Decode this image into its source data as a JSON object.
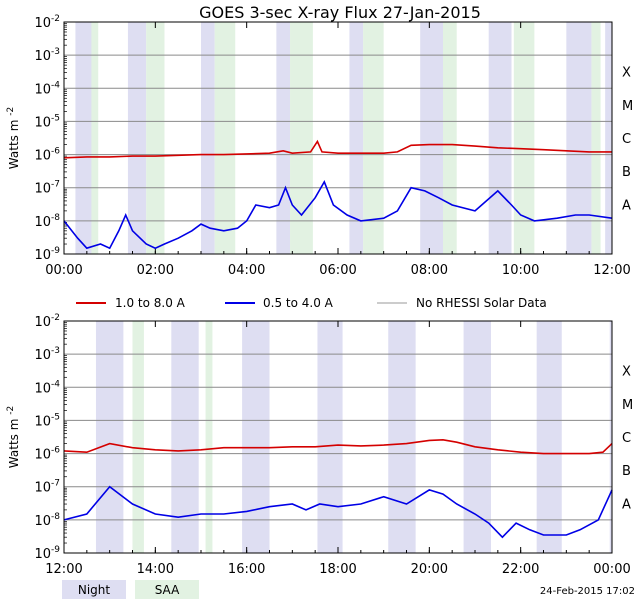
{
  "title": "GOES 3-sec X-ray Flux   27-Jan-2015",
  "timestamp": "24-Feb-2015 17:02",
  "colors": {
    "long_channel": "#d40000",
    "short_channel": "#0000e6",
    "no_rhessi": "#999999",
    "night": "#dedef2",
    "saa": "#e2f2e2",
    "grid": "#8a8a8a"
  },
  "legend": {
    "long": "1.0 to 8.0 A",
    "short": "0.5 to 4.0 A",
    "no_rhessi": "No RHESSI Solar Data"
  },
  "bottom_legend": {
    "night": "Night",
    "saa": "SAA"
  },
  "chart_data": [
    {
      "type": "line",
      "ylabel": "Watts m",
      "ylabel_sup": "-2",
      "yscale": "log",
      "ylim": [
        1e-09,
        0.01
      ],
      "ytick_exponents": [
        -9,
        -8,
        -7,
        -6,
        -5,
        -4,
        -3,
        -2
      ],
      "flare_classes": [
        "A",
        "B",
        "C",
        "M",
        "X"
      ],
      "x_ticks": [
        "00:00",
        "02:00",
        "04:00",
        "06:00",
        "08:00",
        "10:00",
        "12:00"
      ],
      "xlim_hours": [
        0,
        12
      ],
      "night_periods_hours": [
        [
          0.25,
          0.65
        ],
        [
          1.4,
          1.8
        ],
        [
          3.0,
          3.3
        ],
        [
          4.65,
          4.95
        ],
        [
          6.25,
          6.55
        ],
        [
          7.8,
          8.3
        ],
        [
          9.3,
          9.8
        ],
        [
          11.0,
          11.55
        ],
        [
          11.85,
          12.0
        ]
      ],
      "saa_periods_hours": [
        [
          0.6,
          0.75
        ],
        [
          1.8,
          2.2
        ],
        [
          3.3,
          3.75
        ],
        [
          4.95,
          5.45
        ],
        [
          6.55,
          7.0
        ],
        [
          8.3,
          8.6
        ],
        [
          9.85,
          10.3
        ],
        [
          11.55,
          11.75
        ]
      ],
      "series": [
        {
          "name": "1.0 to 8.0 A",
          "channel": "long",
          "points": [
            [
              0,
              8e-07
            ],
            [
              0.5,
              8.5e-07
            ],
            [
              1.0,
              8.5e-07
            ],
            [
              1.5,
              9e-07
            ],
            [
              2.0,
              9e-07
            ],
            [
              2.5,
              9.5e-07
            ],
            [
              3.0,
              1e-06
            ],
            [
              3.5,
              1e-06
            ],
            [
              4.0,
              1.05e-06
            ],
            [
              4.5,
              1.1e-06
            ],
            [
              4.8,
              1.3e-06
            ],
            [
              5.0,
              1.1e-06
            ],
            [
              5.4,
              1.2e-06
            ],
            [
              5.55,
              2.5e-06
            ],
            [
              5.65,
              1.2e-06
            ],
            [
              6.0,
              1.1e-06
            ],
            [
              6.5,
              1.1e-06
            ],
            [
              7.0,
              1.1e-06
            ],
            [
              7.3,
              1.2e-06
            ],
            [
              7.6,
              1.9e-06
            ],
            [
              8.0,
              2e-06
            ],
            [
              8.5,
              2e-06
            ],
            [
              9.0,
              1.8e-06
            ],
            [
              9.5,
              1.6e-06
            ],
            [
              10.0,
              1.5e-06
            ],
            [
              10.5,
              1.4e-06
            ],
            [
              11.0,
              1.3e-06
            ],
            [
              11.5,
              1.2e-06
            ],
            [
              12.0,
              1.2e-06
            ]
          ]
        },
        {
          "name": "0.5 to 4.0 A",
          "channel": "short",
          "points": [
            [
              0,
              1e-08
            ],
            [
              0.3,
              3e-09
            ],
            [
              0.5,
              1.5e-09
            ],
            [
              0.8,
              2e-09
            ],
            [
              1.0,
              1.5e-09
            ],
            [
              1.2,
              5e-09
            ],
            [
              1.35,
              1.5e-08
            ],
            [
              1.5,
              5e-09
            ],
            [
              1.8,
              2e-09
            ],
            [
              2.0,
              1.5e-09
            ],
            [
              2.2,
              2e-09
            ],
            [
              2.5,
              3e-09
            ],
            [
              2.8,
              5e-09
            ],
            [
              3.0,
              8e-09
            ],
            [
              3.2,
              6e-09
            ],
            [
              3.5,
              5e-09
            ],
            [
              3.8,
              6e-09
            ],
            [
              4.0,
              1e-08
            ],
            [
              4.2,
              3e-08
            ],
            [
              4.5,
              2.5e-08
            ],
            [
              4.7,
              3e-08
            ],
            [
              4.85,
              1e-07
            ],
            [
              5.0,
              3e-08
            ],
            [
              5.2,
              1.5e-08
            ],
            [
              5.5,
              5e-08
            ],
            [
              5.7,
              1.5e-07
            ],
            [
              5.9,
              3e-08
            ],
            [
              6.2,
              1.5e-08
            ],
            [
              6.5,
              1e-08
            ],
            [
              7.0,
              1.2e-08
            ],
            [
              7.3,
              2e-08
            ],
            [
              7.6,
              1e-07
            ],
            [
              7.9,
              8e-08
            ],
            [
              8.2,
              5e-08
            ],
            [
              8.5,
              3e-08
            ],
            [
              9.0,
              2e-08
            ],
            [
              9.5,
              8e-08
            ],
            [
              9.8,
              3e-08
            ],
            [
              10.0,
              1.5e-08
            ],
            [
              10.3,
              1e-08
            ],
            [
              10.8,
              1.2e-08
            ],
            [
              11.2,
              1.5e-08
            ],
            [
              11.5,
              1.5e-08
            ],
            [
              12.0,
              1.2e-08
            ]
          ]
        }
      ]
    },
    {
      "type": "line",
      "ylabel": "Watts m",
      "ylabel_sup": "-2",
      "yscale": "log",
      "ylim": [
        1e-09,
        0.01
      ],
      "ytick_exponents": [
        -9,
        -8,
        -7,
        -6,
        -5,
        -4,
        -3,
        -2
      ],
      "flare_classes": [
        "A",
        "B",
        "C",
        "M",
        "X"
      ],
      "x_ticks": [
        "12:00",
        "14:00",
        "16:00",
        "18:00",
        "20:00",
        "22:00",
        "00:00"
      ],
      "xlim_hours": [
        12,
        24
      ],
      "night_periods_hours": [
        [
          12.7,
          13.3
        ],
        [
          14.35,
          14.95
        ],
        [
          15.9,
          16.5
        ],
        [
          17.55,
          18.1
        ],
        [
          19.1,
          19.7
        ],
        [
          20.75,
          21.35
        ],
        [
          22.35,
          22.9
        ],
        [
          23.95,
          24.0
        ]
      ],
      "saa_periods_hours": [
        [
          13.5,
          13.75
        ],
        [
          15.1,
          15.25
        ]
      ],
      "series": [
        {
          "name": "1.0 to 8.0 A",
          "channel": "long",
          "points": [
            [
              12.0,
              1.2e-06
            ],
            [
              12.5,
              1.1e-06
            ],
            [
              13.0,
              2e-06
            ],
            [
              13.5,
              1.5e-06
            ],
            [
              14.0,
              1.3e-06
            ],
            [
              14.5,
              1.2e-06
            ],
            [
              15.0,
              1.3e-06
            ],
            [
              15.5,
              1.5e-06
            ],
            [
              16.0,
              1.5e-06
            ],
            [
              16.5,
              1.5e-06
            ],
            [
              17.0,
              1.6e-06
            ],
            [
              17.5,
              1.6e-06
            ],
            [
              18.0,
              1.8e-06
            ],
            [
              18.5,
              1.7e-06
            ],
            [
              19.0,
              1.8e-06
            ],
            [
              19.5,
              2e-06
            ],
            [
              20.0,
              2.5e-06
            ],
            [
              20.3,
              2.6e-06
            ],
            [
              20.6,
              2.2e-06
            ],
            [
              21.0,
              1.6e-06
            ],
            [
              21.5,
              1.3e-06
            ],
            [
              22.0,
              1.1e-06
            ],
            [
              22.5,
              1e-06
            ],
            [
              23.0,
              1e-06
            ],
            [
              23.5,
              1e-06
            ],
            [
              23.8,
              1.1e-06
            ],
            [
              24.0,
              2e-06
            ]
          ]
        },
        {
          "name": "0.5 to 4.0 A",
          "channel": "short",
          "points": [
            [
              12.0,
              1e-08
            ],
            [
              12.5,
              1.5e-08
            ],
            [
              13.0,
              1e-07
            ],
            [
              13.5,
              3e-08
            ],
            [
              14.0,
              1.5e-08
            ],
            [
              14.5,
              1.2e-08
            ],
            [
              15.0,
              1.5e-08
            ],
            [
              15.5,
              1.5e-08
            ],
            [
              16.0,
              1.8e-08
            ],
            [
              16.5,
              2.5e-08
            ],
            [
              17.0,
              3e-08
            ],
            [
              17.3,
              2e-08
            ],
            [
              17.6,
              3e-08
            ],
            [
              18.0,
              2.5e-08
            ],
            [
              18.5,
              3e-08
            ],
            [
              19.0,
              5e-08
            ],
            [
              19.5,
              3e-08
            ],
            [
              20.0,
              8e-08
            ],
            [
              20.3,
              6e-08
            ],
            [
              20.6,
              3e-08
            ],
            [
              21.0,
              1.5e-08
            ],
            [
              21.3,
              8e-09
            ],
            [
              21.6,
              3e-09
            ],
            [
              21.9,
              8e-09
            ],
            [
              22.2,
              5e-09
            ],
            [
              22.5,
              3.5e-09
            ],
            [
              23.0,
              3.5e-09
            ],
            [
              23.3,
              5e-09
            ],
            [
              23.7,
              1e-08
            ],
            [
              24.0,
              8e-08
            ]
          ]
        }
      ]
    }
  ]
}
